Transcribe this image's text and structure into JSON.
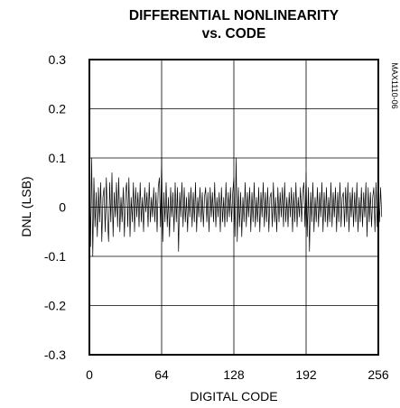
{
  "chart_data": {
    "type": "line",
    "title_lines": [
      "DIFFERENTIAL NONLINEARITY",
      "vs. CODE"
    ],
    "xlabel": "DIGITAL CODE",
    "ylabel": "DNL (LSB)",
    "xlim": [
      0,
      256
    ],
    "ylim": [
      -0.3,
      0.3
    ],
    "xticks": [
      0,
      64,
      128,
      192,
      256
    ],
    "xtick_labels": [
      "0",
      "64",
      "128",
      "192",
      "256"
    ],
    "yticks": [
      0.3,
      0.2,
      0.1,
      0,
      -0.1,
      -0.2,
      -0.3
    ],
    "ytick_labels": [
      "0.3",
      "0.2",
      "0.1",
      "0",
      "-0.1",
      "-0.2",
      "-0.3"
    ],
    "grid": true,
    "figure_code": "MAX1110-06",
    "series": [
      {
        "x_start": 0,
        "x_step": 1,
        "values": [
          0.085,
          -0.08,
          0.1,
          -0.1,
          0.06,
          -0.04,
          0.03,
          -0.06,
          0.04,
          -0.03,
          0.05,
          -0.07,
          0.02,
          0.04,
          -0.05,
          0.06,
          -0.02,
          -0.07,
          0.05,
          -0.03,
          0.07,
          -0.06,
          0.03,
          -0.02,
          0.05,
          -0.04,
          0.06,
          -0.05,
          0.02,
          -0.03,
          0.04,
          -0.06,
          0.03,
          0.05,
          -0.04,
          0.06,
          -0.06,
          0.02,
          -0.03,
          0.05,
          -0.05,
          0.04,
          -0.02,
          0.03,
          -0.04,
          0.05,
          -0.03,
          0.02,
          -0.05,
          0.04,
          -0.01,
          0.03,
          -0.04,
          0.05,
          -0.03,
          0.02,
          -0.02,
          0.04,
          -0.03,
          0.03,
          -0.05,
          0.04,
          0.06,
          -0.04,
          0.1,
          -0.07,
          0.03,
          -0.03,
          0.05,
          -0.04,
          0.02,
          -0.06,
          0.04,
          -0.02,
          0.03,
          -0.05,
          0.05,
          -0.03,
          0.04,
          -0.09,
          0.03,
          -0.02,
          0.05,
          -0.04,
          0.04,
          -0.03,
          0.02,
          -0.05,
          0.03,
          -0.02,
          0.04,
          -0.04,
          0.03,
          -0.03,
          0.05,
          -0.05,
          0.02,
          -0.02,
          0.04,
          -0.03,
          0.03,
          -0.04,
          0.02,
          0.04,
          -0.03,
          0.03,
          -0.05,
          0.04,
          -0.02,
          0.03,
          -0.03,
          0.05,
          -0.04,
          0.02,
          -0.02,
          0.03,
          -0.05,
          0.04,
          -0.03,
          0.02,
          -0.04,
          0.05,
          -0.03,
          0.03,
          -0.02,
          0.04,
          -0.03,
          0.03,
          0.06,
          -0.06,
          0.1,
          -0.07,
          0.04,
          -0.04,
          0.03,
          -0.06,
          0.02,
          -0.03,
          0.05,
          -0.04,
          0.03,
          -0.02,
          0.04,
          -0.05,
          0.03,
          -0.03,
          0.05,
          -0.04,
          0.02,
          -0.03,
          0.04,
          -0.05,
          0.03,
          -0.02,
          0.05,
          -0.04,
          0.03,
          -0.03,
          0.04,
          -0.05,
          0.02,
          0.03,
          -0.04,
          0.05,
          -0.03,
          0.02,
          -0.05,
          0.04,
          -0.03,
          0.03,
          -0.02,
          0.04,
          -0.04,
          0.05,
          -0.03,
          0.02,
          -0.04,
          0.03,
          -0.02,
          0.04,
          -0.05,
          0.03,
          -0.03,
          0.05,
          -0.04,
          0.02,
          -0.02,
          0.04,
          -0.03,
          0.03,
          0.05,
          -0.04,
          0.07,
          -0.06,
          0.04,
          -0.09,
          0.03,
          -0.03,
          0.05,
          -0.05,
          0.02,
          -0.03,
          0.04,
          -0.04,
          0.03,
          -0.02,
          0.05,
          -0.05,
          0.03,
          -0.03,
          0.04,
          -0.04,
          0.02,
          -0.03,
          0.05,
          -0.04,
          0.03,
          -0.02,
          0.04,
          -0.05,
          0.03,
          -0.03,
          0.05,
          -0.04,
          0.02,
          0.03,
          -0.04,
          0.04,
          -0.03,
          0.05,
          -0.05,
          0.03,
          -0.02,
          0.04,
          -0.04,
          0.03,
          -0.03,
          0.05,
          -0.05,
          0.02,
          -0.03,
          0.04,
          -0.04,
          0.03,
          -0.02,
          0.05,
          -0.06,
          0.04,
          -0.03,
          0.03,
          -0.04,
          0.02,
          0.04,
          -0.05,
          0.05,
          -0.04,
          0.03,
          -0.03,
          0.04,
          -0.02
        ]
      }
    ]
  }
}
